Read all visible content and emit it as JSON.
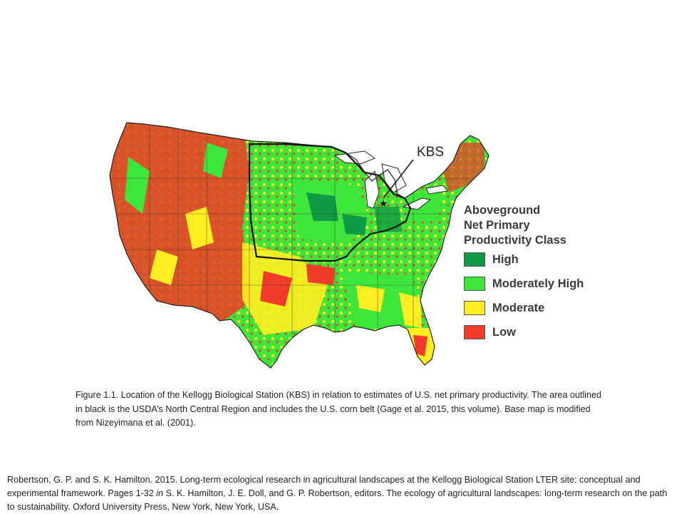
{
  "map": {
    "marker_label": "KBS",
    "marker_icon": "star-icon",
    "colors": {
      "High": "#109a45",
      "Moderately High": "#3ee53a",
      "Moderate": "#ffee22",
      "Low": "#f03c28"
    }
  },
  "legend": {
    "title_lines": [
      "Aboveground",
      "Net Primary",
      "Productivity Class"
    ],
    "items": [
      {
        "label": "High",
        "color": "#109a45"
      },
      {
        "label": "Moderately High",
        "color": "#3ee53a"
      },
      {
        "label": "Moderate",
        "color": "#ffee22"
      },
      {
        "label": "Low",
        "color": "#f03c28"
      }
    ]
  },
  "caption": "Figure 1.1. Location of the Kellogg Biological Station (KBS) in relation to estimates of U.S. net primary productivity. The area outlined in black is the USDA’s North Central Region and includes the U.S. corn belt (Gage et al. 2015, this volume). Base map is modified from Nizeyimana et al. (2001).",
  "citation": {
    "part1": "Robertson, G. P. and S. K. Hamilton. 2015. Long-term ecological research in agricultural landscapes at the Kellogg Biological Station LTER site: conceptual and experimental framework. Pages 1-32 ",
    "italic": "in",
    "part2": " S. K. Hamilton, J. E. Doll, and G. P. Robertson, editors. The ecology of agricultural landscapes: long-term research on the path to sustainability. Oxford University Press, New York, New York, USA."
  }
}
